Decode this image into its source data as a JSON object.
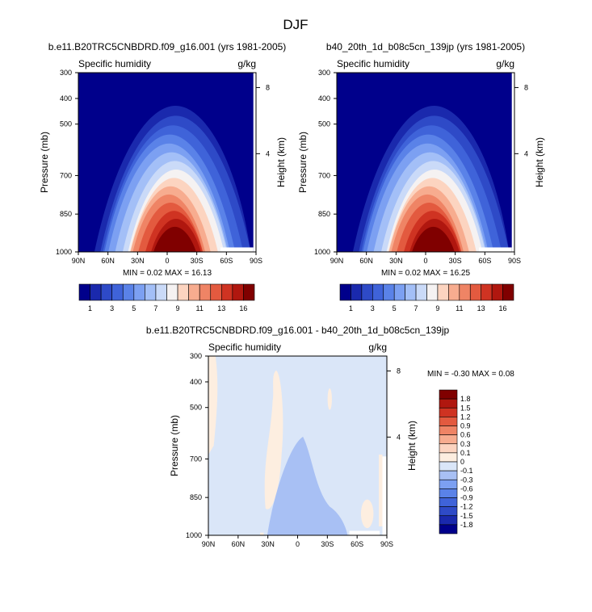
{
  "title": "DJF",
  "chart_data": [
    {
      "type": "heatmap",
      "id": "left",
      "title": "b.e11.B20TRC5CNBDRD.f09_g16.001 (yrs 1981-2005)",
      "left_label": "Specific humidity",
      "right_label": "g/kg",
      "ylabel": "Pressure (mb)",
      "y2label": "Height (km)",
      "x_ticks": [
        "90N",
        "60N",
        "30N",
        "0",
        "30S",
        "60S",
        "90S"
      ],
      "y_ticks": [
        "300",
        "400",
        "500",
        "700",
        "850",
        "1000"
      ],
      "y2_ticks": [
        "8",
        "4"
      ],
      "stats": "MIN =  0.02  MAX =  16.13",
      "min": 0.02,
      "max": 16.13,
      "colorbar": {
        "labels": [
          "1",
          "3",
          "5",
          "7",
          "9",
          "11",
          "13",
          "16"
        ],
        "colors": [
          "#00008b",
          "#1a29ad",
          "#2e4ac7",
          "#3f63d9",
          "#5a82e8",
          "#7ca0f2",
          "#a3bff7",
          "#cadaf8",
          "#f5f2f2",
          "#fcd4c0",
          "#f7ac8f",
          "#ef8465",
          "#e35a3f",
          "#cf3322",
          "#b0170f",
          "#800000"
        ]
      }
    },
    {
      "type": "heatmap",
      "id": "right",
      "title": "b40_20th_1d_b08c5cn_139jp (yrs 1981-2005)",
      "left_label": "Specific humidity",
      "right_label": "g/kg",
      "ylabel": "Pressure (mb)",
      "y2label": "Height (km)",
      "x_ticks": [
        "90N",
        "60N",
        "30N",
        "0",
        "30S",
        "60S",
        "90S"
      ],
      "y_ticks": [
        "300",
        "400",
        "500",
        "700",
        "850",
        "1000"
      ],
      "y2_ticks": [
        "8",
        "4"
      ],
      "stats": "MIN =  0.02  MAX =  16.25",
      "min": 0.02,
      "max": 16.25,
      "colorbar": {
        "labels": [
          "1",
          "3",
          "5",
          "7",
          "9",
          "11",
          "13",
          "16"
        ],
        "colors": [
          "#00008b",
          "#1a29ad",
          "#2e4ac7",
          "#3f63d9",
          "#5a82e8",
          "#7ca0f2",
          "#a3bff7",
          "#cadaf8",
          "#f5f2f2",
          "#fcd4c0",
          "#f7ac8f",
          "#ef8465",
          "#e35a3f",
          "#cf3322",
          "#b0170f",
          "#800000"
        ]
      }
    },
    {
      "type": "heatmap",
      "id": "diff",
      "title": "b.e11.B20TRC5CNBDRD.f09_g16.001 - b40_20th_1d_b08c5cn_139jp",
      "left_label": "Specific humidity",
      "right_label": "g/kg",
      "ylabel": "Pressure (mb)",
      "y2label": "Height (km)",
      "x_ticks": [
        "90N",
        "60N",
        "30N",
        "0",
        "30S",
        "60S",
        "90S"
      ],
      "y_ticks": [
        "300",
        "400",
        "500",
        "700",
        "850",
        "1000"
      ],
      "y2_ticks": [
        "8",
        "4"
      ],
      "stats": "MIN = -0.30  MAX =  0.08",
      "min": -0.3,
      "max": 0.08,
      "colorbar": {
        "labels": [
          "1.8",
          "1.5",
          "1.2",
          "0.9",
          "0.6",
          "0.3",
          "0.1",
          "0",
          "-0.1",
          "-0.3",
          "-0.6",
          "-0.9",
          "-1.2",
          "-1.5",
          "-1.8"
        ],
        "colors": [
          "#800000",
          "#b0170f",
          "#cf3322",
          "#e35a3f",
          "#ef8465",
          "#f7ac8f",
          "#fcd4c0",
          "#fdeee0",
          "#dae6f8",
          "#a8c0f4",
          "#7ca0f2",
          "#5a82e8",
          "#3f63d9",
          "#2e4ac7",
          "#1a29ad",
          "#00008b"
        ]
      }
    }
  ]
}
